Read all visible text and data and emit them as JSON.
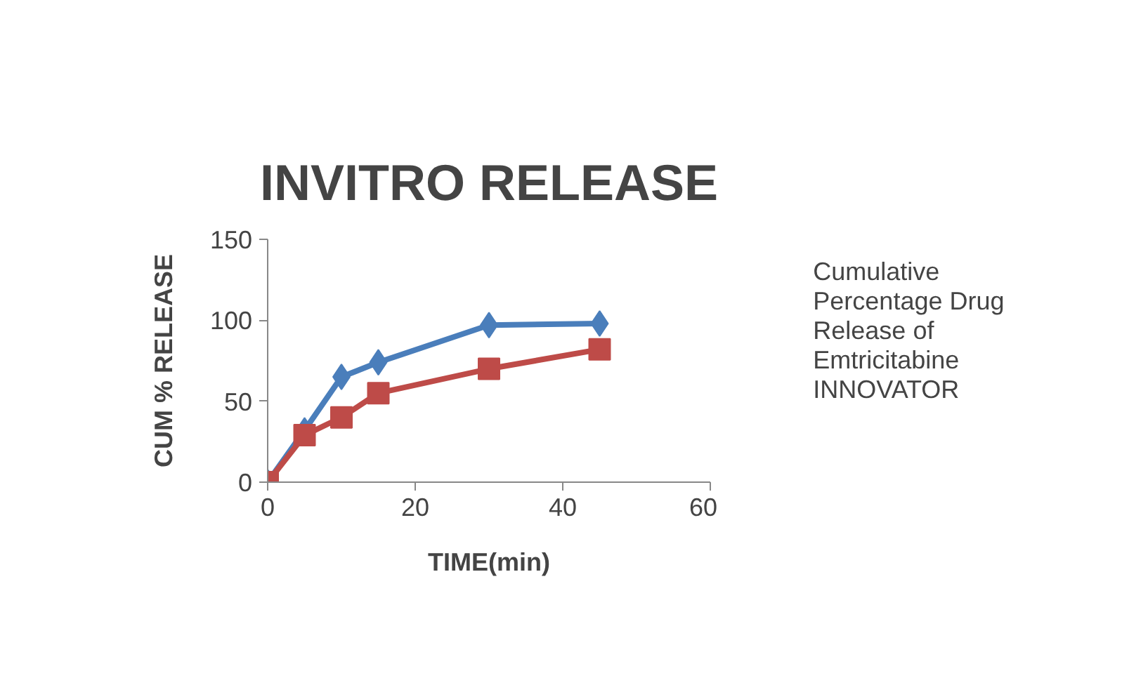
{
  "chart_data": {
    "type": "line",
    "title": "INVITRO RELEASE",
    "xlabel": "TIME(min)",
    "ylabel": "CUM % RELEASE",
    "x": [
      0,
      5,
      10,
      15,
      30,
      45
    ],
    "series": [
      {
        "name": "Cumulative Percentage Drug Release of Emtricitabine INNOVATOR",
        "color": "#4a7ebb",
        "marker": "diamond",
        "values": [
          0,
          32,
          65,
          74,
          97,
          98
        ]
      },
      {
        "color": "#be4b48",
        "marker": "square",
        "values": [
          0,
          29,
          40,
          55,
          70,
          82
        ]
      }
    ],
    "xlim": [
      0,
      60
    ],
    "xticks": [
      0,
      20,
      40,
      60
    ],
    "ylim": [
      0,
      150
    ],
    "yticks": [
      0,
      50,
      100,
      150
    ],
    "grid": false,
    "legend": "right",
    "line_style": "solid"
  }
}
